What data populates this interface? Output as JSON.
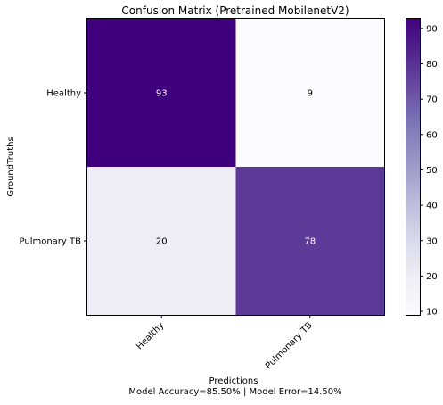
{
  "chart_data": {
    "type": "heatmap",
    "title": "Confusion Matrix (Pretrained MobilenetV2)",
    "xlabel": "Predictions",
    "xlabel_line2": "Model Accuracy=85.50% | Model Error=14.50%",
    "ylabel": "GroundTruths",
    "x_categories": [
      "Healthy",
      "Pulmonary TB"
    ],
    "y_categories": [
      "Healthy",
      "Pulmonary TB"
    ],
    "matrix": [
      [
        93,
        9
      ],
      [
        20,
        78
      ]
    ],
    "colormap": "Purples",
    "colorbar": {
      "min": 9,
      "max": 93,
      "ticks": [
        10,
        20,
        30,
        40,
        50,
        60,
        70,
        80,
        90
      ]
    }
  }
}
